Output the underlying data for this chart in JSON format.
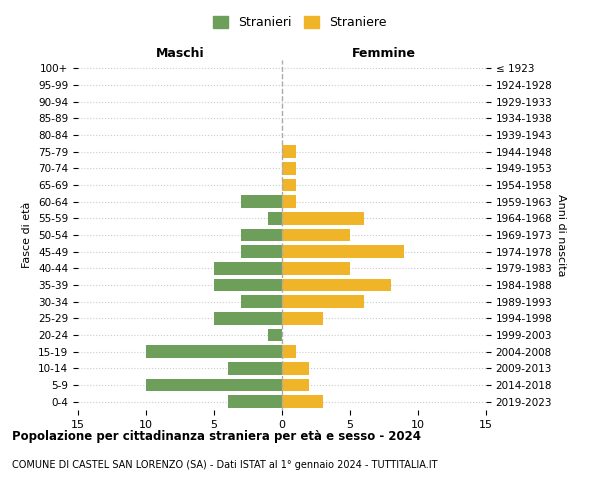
{
  "age_groups": [
    "100+",
    "95-99",
    "90-94",
    "85-89",
    "80-84",
    "75-79",
    "70-74",
    "65-69",
    "60-64",
    "55-59",
    "50-54",
    "45-49",
    "40-44",
    "35-39",
    "30-34",
    "25-29",
    "20-24",
    "15-19",
    "10-14",
    "5-9",
    "0-4"
  ],
  "birth_years": [
    "≤ 1923",
    "1924-1928",
    "1929-1933",
    "1934-1938",
    "1939-1943",
    "1944-1948",
    "1949-1953",
    "1954-1958",
    "1959-1963",
    "1964-1968",
    "1969-1973",
    "1974-1978",
    "1979-1983",
    "1984-1988",
    "1989-1993",
    "1994-1998",
    "1999-2003",
    "2004-2008",
    "2009-2013",
    "2014-2018",
    "2019-2023"
  ],
  "males": [
    0,
    0,
    0,
    0,
    0,
    0,
    0,
    0,
    3,
    1,
    3,
    3,
    5,
    5,
    3,
    5,
    1,
    10,
    4,
    10,
    4
  ],
  "females": [
    0,
    0,
    0,
    0,
    0,
    1,
    1,
    1,
    1,
    6,
    5,
    9,
    5,
    8,
    6,
    3,
    0,
    1,
    2,
    2,
    3
  ],
  "male_color": "#6d9e5a",
  "female_color": "#f0b429",
  "title": "Popolazione per cittadinanza straniera per età e sesso - 2024",
  "subtitle": "COMUNE DI CASTEL SAN LORENZO (SA) - Dati ISTAT al 1° gennaio 2024 - TUTTITALIA.IT",
  "left_label": "Maschi",
  "right_label": "Femmine",
  "ylabel_left": "Fasce di età",
  "ylabel_right": "Anni di nascita",
  "legend_male": "Stranieri",
  "legend_female": "Straniere",
  "xlim": 15,
  "background_color": "#ffffff",
  "grid_color": "#cccccc",
  "center_line_color": "#aaaaaa"
}
